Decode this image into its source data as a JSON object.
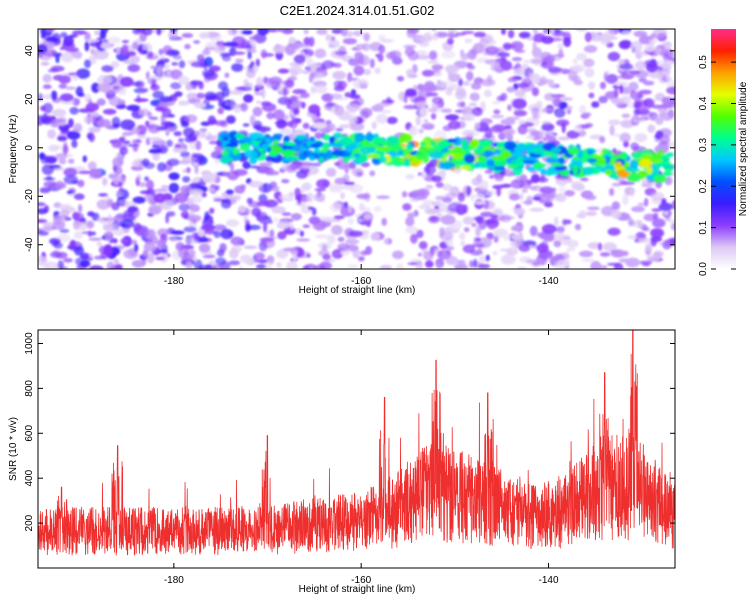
{
  "chart_data": [
    {
      "type": "heatmap",
      "title": "C2E1.2024.314.01.51.G02",
      "xlabel": "Height of straight line (km)",
      "ylabel": "Frequency (Hz)",
      "xlim": [
        -194.5,
        -126.5
      ],
      "ylim": [
        -50,
        49
      ],
      "x_ticks": [
        -180,
        -160,
        -140
      ],
      "y_ticks": [
        -40,
        -20,
        0,
        20,
        40
      ],
      "colorbar": {
        "label": "Normalized spectral amplitude",
        "range": [
          0.0,
          0.58
        ],
        "ticks": [
          0.0,
          0.1,
          0.2,
          0.3,
          0.4,
          0.5
        ],
        "colors": [
          "#ffffff",
          "#dcc8f5",
          "#8c3cff",
          "#3a1cff",
          "#0050ff",
          "#00c8ff",
          "#00ff90",
          "#50ff00",
          "#e6ff00",
          "#ffa000",
          "#ff2000",
          "#ff2c8c"
        ]
      },
      "signal_band": {
        "x_range": [
          -175,
          -127
        ],
        "center_frequency_hz": 0,
        "frequency_drift_hz": [
          0,
          -8
        ],
        "peak_amplitude": 0.52
      },
      "sparse_regions": [
        [
          -159,
          -155
        ],
        [
          -138,
          -133
        ]
      ]
    },
    {
      "type": "line",
      "xlabel": "Height of straight line (km)",
      "ylabel": "SNR (10 * v/v)",
      "xlim": [
        -194.5,
        -126.5
      ],
      "ylim": [
        0,
        1060
      ],
      "x_ticks": [
        -180,
        -160,
        -140
      ],
      "y_ticks": [
        200,
        400,
        600,
        800,
        1000
      ],
      "color": "#ef2e2e",
      "baseline_envelope": [
        {
          "x": -194,
          "y": 160
        },
        {
          "x": -180,
          "y": 160
        },
        {
          "x": -170,
          "y": 165
        },
        {
          "x": -165,
          "y": 185
        },
        {
          "x": -160,
          "y": 200
        },
        {
          "x": -157,
          "y": 240
        },
        {
          "x": -153,
          "y": 330
        },
        {
          "x": -150,
          "y": 320
        },
        {
          "x": -145,
          "y": 260
        },
        {
          "x": -141,
          "y": 220
        },
        {
          "x": -138,
          "y": 250
        },
        {
          "x": -134,
          "y": 360
        },
        {
          "x": -130,
          "y": 330
        },
        {
          "x": -127,
          "y": 230
        }
      ],
      "peaks": [
        {
          "x": -192,
          "y": 360
        },
        {
          "x": -186,
          "y": 545
        },
        {
          "x": -170,
          "y": 590
        },
        {
          "x": -157.5,
          "y": 760
        },
        {
          "x": -152,
          "y": 925
        },
        {
          "x": -146.5,
          "y": 780
        },
        {
          "x": -134,
          "y": 870
        },
        {
          "x": -131,
          "y": 1060
        }
      ]
    }
  ]
}
